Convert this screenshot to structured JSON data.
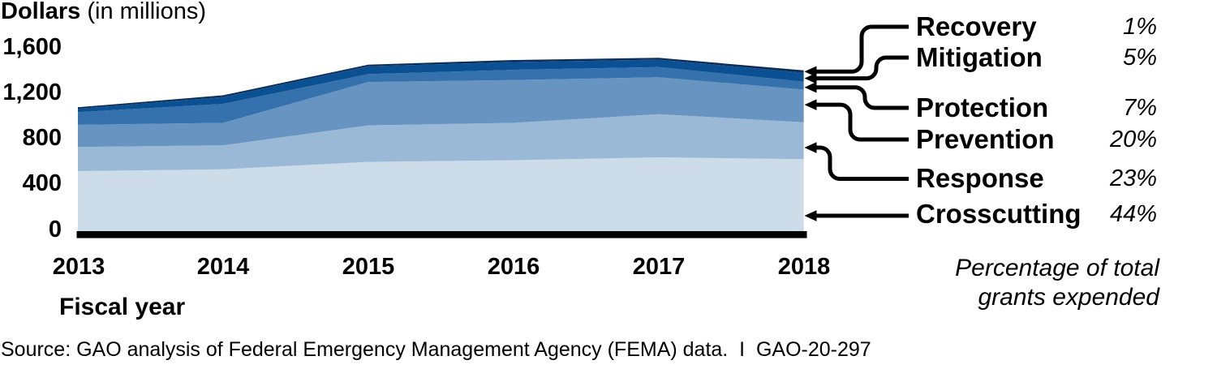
{
  "title": {
    "bold": "Dollars",
    "regular": "(in millions)"
  },
  "y_axis": {
    "tick_labels": [
      "1,600",
      "1,200",
      "800",
      "400",
      "0"
    ],
    "tick_values": [
      1600,
      1200,
      800,
      400,
      0
    ]
  },
  "x_axis": {
    "label": "Fiscal year",
    "tick_labels": [
      "2013",
      "2014",
      "2015",
      "2016",
      "2017",
      "2018"
    ]
  },
  "legend": [
    {
      "label": "Recovery",
      "pct": "1%",
      "series": "recovery",
      "arrow_points_to_value": 1400
    },
    {
      "label": "Mitigation",
      "pct": "5%",
      "series": "mitigation",
      "arrow_points_to_value": 1341
    },
    {
      "label": "Protection",
      "pct": "7%",
      "series": "protection",
      "arrow_points_to_value": 1262
    },
    {
      "label": "Prevention",
      "pct": "20%",
      "series": "prevention",
      "arrow_points_to_value": 1109
    },
    {
      "label": "Response",
      "pct": "23%",
      "series": "response",
      "arrow_points_to_value": 733
    },
    {
      "label": "Crosscutting",
      "pct": "44%",
      "series": "crosscutting",
      "arrow_points_to_value": 135
    }
  ],
  "legend_note_lines": [
    "Percentage of total",
    "grants expended"
  ],
  "source_line": "Source: GAO analysis of Federal Emergency Management Agency (FEMA) data.  I  GAO-20-297",
  "colors": {
    "recovery": "#0c2d58",
    "mitigation": "#0a5092",
    "protection": "#3571ad",
    "prevention": "#6794c1",
    "response": "#9ab9d6",
    "crosscutting": "#cddce9",
    "axis_line": "#000000",
    "arrow": "#000000",
    "text": "#000000"
  },
  "chart_data": {
    "type": "area",
    "stacked": true,
    "title": "Dollars (in millions)",
    "xlabel": "Fiscal year",
    "ylabel": "Dollars (in millions)",
    "x": [
      2013,
      2014,
      2015,
      2016,
      2017,
      2018
    ],
    "ylim": [
      0,
      1600
    ],
    "grid": false,
    "legend_position": "right",
    "series": [
      {
        "name": "Crosscutting",
        "key": "crosscutting",
        "pct_of_total": "44%",
        "values": [
          527,
          542,
          608,
          623,
          648,
          631
        ]
      },
      {
        "name": "Response",
        "key": "response",
        "pct_of_total": "23%",
        "values": [
          212,
          211,
          320,
          327,
          378,
          324
        ]
      },
      {
        "name": "Prevention",
        "key": "prevention",
        "pct_of_total": "20%",
        "values": [
          194,
          197,
          381,
          376,
          324,
          287
        ]
      },
      {
        "name": "Protection",
        "key": "protection",
        "pct_of_total": "7%",
        "values": [
          111,
          167,
          69,
          90,
          90,
          70
        ]
      },
      {
        "name": "Mitigation",
        "key": "mitigation",
        "pct_of_total": "5%",
        "values": [
          30,
          60,
          68,
          68,
          65,
          78
        ]
      },
      {
        "name": "Recovery",
        "key": "recovery",
        "pct_of_total": "1%",
        "values": [
          13,
          15,
          15,
          18,
          17,
          21
        ]
      }
    ]
  }
}
